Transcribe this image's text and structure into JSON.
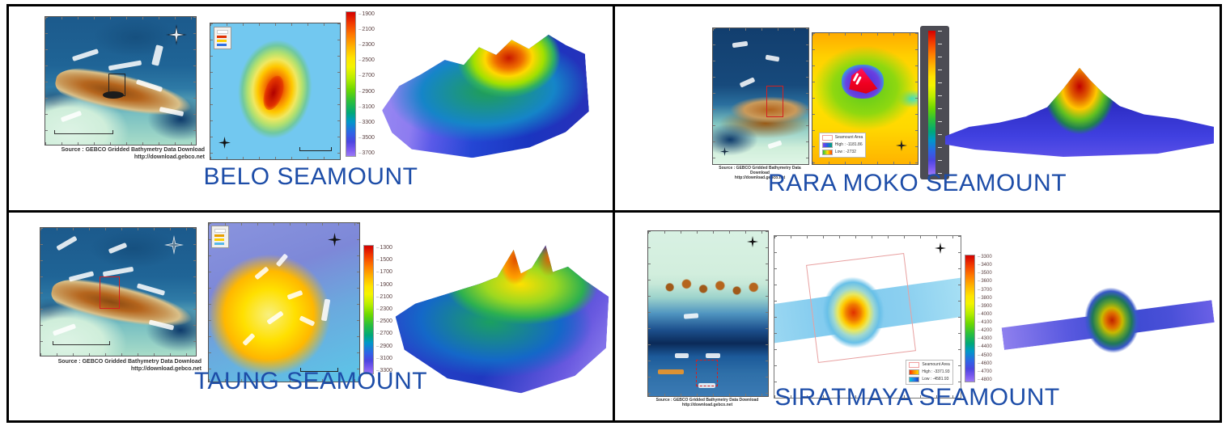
{
  "colors": {
    "title": "#1d4da8",
    "frame_border": "#000000"
  },
  "panels": {
    "belo": {
      "title": "BELO SEAMOUNT",
      "source_line1": "Source : GEBCO Gridded Bathymetry Data Download",
      "source_line2": "http://download.gebco.net",
      "colorbar_ticks": [
        "1900",
        "2100",
        "2300",
        "2500",
        "2700",
        "2900",
        "3100",
        "3300",
        "3500",
        "3700"
      ]
    },
    "rara": {
      "title": "RARA MOKO SEAMOUNT",
      "source_line1": "Source : GEBCO Gridded Bathymetry Data Download",
      "source_line2": "http://download.gebco.net",
      "legend": {
        "area": "Seamount Area",
        "high": "High : -1181.86",
        "low": "Low : -2732"
      }
    },
    "taung": {
      "title": "TAUNG SEAMOUNT",
      "source_line1": "Source : GEBCO Gridded Bathymetry Data Download",
      "source_line2": "http://download.gebco.net",
      "colorbar_ticks": [
        "1300",
        "1500",
        "1700",
        "1900",
        "2100",
        "2300",
        "2500",
        "2700",
        "2900",
        "3100",
        "3300"
      ]
    },
    "sirat": {
      "title": "SIRATMAYA SEAMOUNT",
      "source_line1": "Source : GEBCO Gridded Bathymetry Data Download",
      "source_line2": "http://download.gebco.net",
      "legend": {
        "area": "Seamount Area",
        "high": "High : -3371.93",
        "low": "Low : -4581.93"
      },
      "colorbar_ticks": [
        "3300",
        "3400",
        "3500",
        "3600",
        "3700",
        "3800",
        "3900",
        "4000",
        "4100",
        "4200",
        "4300",
        "4400",
        "4500",
        "4600",
        "4700",
        "4800"
      ]
    }
  }
}
